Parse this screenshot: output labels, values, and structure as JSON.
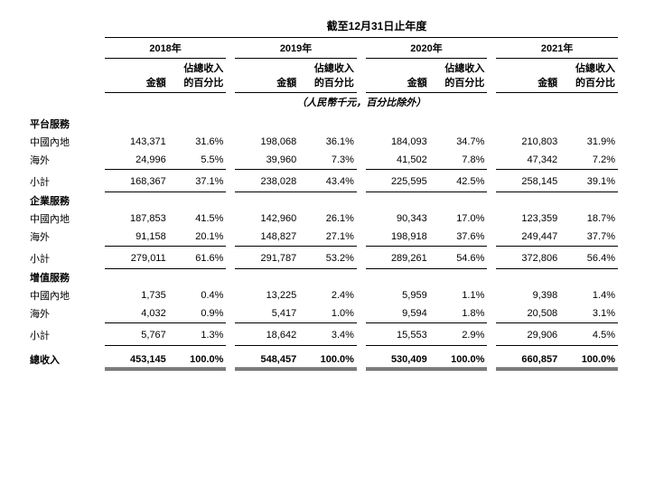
{
  "title": "截至12月31日止年度",
  "years": [
    "2018年",
    "2019年",
    "2020年",
    "2021年"
  ],
  "col_amount": "金額",
  "col_percent": "佔總收入\n的百分比",
  "unit_note": "（人民幣千元，百分比除外）",
  "sections": {
    "platform": {
      "title": "平台服務",
      "china": {
        "label": "中國內地",
        "cells": [
          "143,371",
          "31.6%",
          "198,068",
          "36.1%",
          "184,093",
          "34.7%",
          "210,803",
          "31.9%"
        ]
      },
      "overseas": {
        "label": "海外",
        "cells": [
          "24,996",
          "5.5%",
          "39,960",
          "7.3%",
          "41,502",
          "7.8%",
          "47,342",
          "7.2%"
        ]
      },
      "subtotal": {
        "label": "小計",
        "cells": [
          "168,367",
          "37.1%",
          "238,028",
          "43.4%",
          "225,595",
          "42.5%",
          "258,145",
          "39.1%"
        ]
      }
    },
    "enterprise": {
      "title": "企業服務",
      "china": {
        "label": "中國內地",
        "cells": [
          "187,853",
          "41.5%",
          "142,960",
          "26.1%",
          "90,343",
          "17.0%",
          "123,359",
          "18.7%"
        ]
      },
      "overseas": {
        "label": "海外",
        "cells": [
          "91,158",
          "20.1%",
          "148,827",
          "27.1%",
          "198,918",
          "37.6%",
          "249,447",
          "37.7%"
        ]
      },
      "subtotal": {
        "label": "小計",
        "cells": [
          "279,011",
          "61.6%",
          "291,787",
          "53.2%",
          "289,261",
          "54.6%",
          "372,806",
          "56.4%"
        ]
      }
    },
    "valueadded": {
      "title": "增值服務",
      "china": {
        "label": "中國內地",
        "cells": [
          "1,735",
          "0.4%",
          "13,225",
          "2.4%",
          "5,959",
          "1.1%",
          "9,398",
          "1.4%"
        ]
      },
      "overseas": {
        "label": "海外",
        "cells": [
          "4,032",
          "0.9%",
          "5,417",
          "1.0%",
          "9,594",
          "1.8%",
          "20,508",
          "3.1%"
        ]
      },
      "subtotal": {
        "label": "小計",
        "cells": [
          "5,767",
          "1.3%",
          "18,642",
          "3.4%",
          "15,553",
          "2.9%",
          "29,906",
          "4.5%"
        ]
      }
    }
  },
  "total": {
    "label": "總收入",
    "cells": [
      "453,145",
      "100.0%",
      "548,457",
      "100.0%",
      "530,409",
      "100.0%",
      "660,857",
      "100.0%"
    ]
  }
}
